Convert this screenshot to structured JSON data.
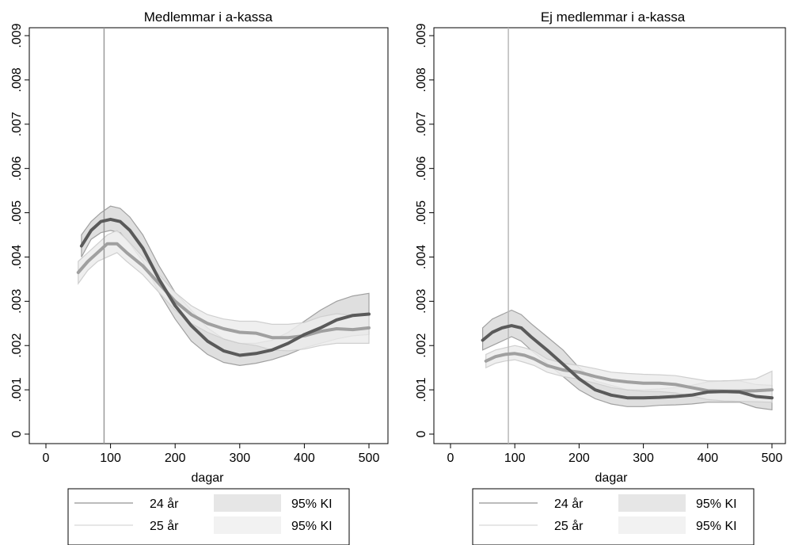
{
  "chart_data": [
    {
      "type": "line",
      "title": "Medlemmar i a-kassa",
      "xlabel": "dagar",
      "ylabel": "",
      "xlim": [
        0,
        500
      ],
      "ylim": [
        0,
        0.009
      ],
      "xticks": [
        "0",
        "100",
        "200",
        "300",
        "400",
        "500"
      ],
      "yticks": [
        "0",
        ".001",
        ".002",
        ".003",
        ".004",
        ".005",
        ".006",
        ".007",
        ".008",
        ".009"
      ],
      "reference_line_x": 90,
      "series": [
        {
          "name": "24 år",
          "color": "#5a5a5a",
          "x": [
            55,
            70,
            85,
            100,
            115,
            130,
            150,
            175,
            200,
            225,
            250,
            275,
            300,
            325,
            350,
            375,
            400,
            425,
            450,
            475,
            500
          ],
          "y": [
            0.00425,
            0.0046,
            0.0048,
            0.00485,
            0.0048,
            0.0046,
            0.0042,
            0.0035,
            0.0029,
            0.00245,
            0.0021,
            0.00188,
            0.00178,
            0.00182,
            0.0019,
            0.00205,
            0.00225,
            0.0024,
            0.00258,
            0.00268,
            0.00271
          ],
          "ci_lower": [
            0.004,
            0.0044,
            0.00455,
            0.0046,
            0.00455,
            0.0043,
            0.0039,
            0.0032,
            0.0026,
            0.0021,
            0.0018,
            0.00162,
            0.00155,
            0.0016,
            0.00168,
            0.0018,
            0.00195,
            0.00205,
            0.00215,
            0.00222,
            0.00225
          ],
          "ci_upper": [
            0.0045,
            0.0048,
            0.005,
            0.00515,
            0.0051,
            0.0049,
            0.0045,
            0.0038,
            0.0032,
            0.0028,
            0.0024,
            0.00215,
            0.00205,
            0.00205,
            0.00212,
            0.0023,
            0.00255,
            0.0028,
            0.003,
            0.00312,
            0.00318
          ]
        },
        {
          "name": "25 år",
          "color": "#a0a0a0",
          "x": [
            50,
            65,
            80,
            95,
            110,
            125,
            150,
            175,
            200,
            225,
            250,
            275,
            300,
            325,
            350,
            375,
            400,
            425,
            450,
            475,
            500
          ],
          "y": [
            0.00365,
            0.0039,
            0.0041,
            0.0043,
            0.0043,
            0.0041,
            0.0038,
            0.0034,
            0.003,
            0.0027,
            0.0025,
            0.00238,
            0.0023,
            0.00228,
            0.00218,
            0.00218,
            0.00222,
            0.00232,
            0.00238,
            0.00236,
            0.0024
          ],
          "ci_lower": [
            0.0034,
            0.0037,
            0.0039,
            0.004,
            0.0041,
            0.0039,
            0.0036,
            0.0032,
            0.0028,
            0.0025,
            0.0023,
            0.00215,
            0.00205,
            0.002,
            0.0019,
            0.00188,
            0.00192,
            0.002,
            0.00205,
            0.00205,
            0.00205
          ],
          "ci_upper": [
            0.0039,
            0.0041,
            0.0043,
            0.0045,
            0.0046,
            0.0044,
            0.004,
            0.0036,
            0.0032,
            0.0029,
            0.0027,
            0.0026,
            0.00255,
            0.00255,
            0.00248,
            0.00248,
            0.00252,
            0.00265,
            0.00272,
            0.00268,
            0.00272
          ]
        }
      ]
    },
    {
      "type": "line",
      "title": "Ej medlemmar i a-kassa",
      "xlabel": "dagar",
      "ylabel": "",
      "xlim": [
        0,
        500
      ],
      "ylim": [
        0,
        0.009
      ],
      "xticks": [
        "0",
        "100",
        "200",
        "300",
        "400",
        "500"
      ],
      "yticks": [
        "0",
        ".001",
        ".002",
        ".003",
        ".004",
        ".005",
        ".006",
        ".007",
        ".008",
        ".009"
      ],
      "reference_line_x": 90,
      "series": [
        {
          "name": "24 år",
          "color": "#5a5a5a",
          "x": [
            50,
            65,
            80,
            95,
            110,
            125,
            150,
            175,
            200,
            225,
            250,
            275,
            300,
            325,
            350,
            375,
            400,
            425,
            450,
            475,
            500
          ],
          "y": [
            0.00212,
            0.0023,
            0.0024,
            0.00245,
            0.0024,
            0.0022,
            0.0019,
            0.00158,
            0.00125,
            0.001,
            0.00088,
            0.00082,
            0.00082,
            0.00083,
            0.00085,
            0.00088,
            0.00095,
            0.00096,
            0.00095,
            0.00085,
            0.00082
          ],
          "ci_lower": [
            0.0019,
            0.002,
            0.0021,
            0.0022,
            0.0021,
            0.0019,
            0.0016,
            0.0013,
            0.001,
            0.0008,
            0.00068,
            0.00062,
            0.00062,
            0.00065,
            0.00066,
            0.00068,
            0.00072,
            0.00072,
            0.00072,
            0.0006,
            0.00055
          ],
          "ci_upper": [
            0.0024,
            0.0026,
            0.0027,
            0.0028,
            0.0027,
            0.0025,
            0.0022,
            0.0019,
            0.0015,
            0.0012,
            0.0011,
            0.001,
            0.001,
            0.00102,
            0.00105,
            0.0011,
            0.00118,
            0.0012,
            0.0012,
            0.00112,
            0.0011
          ]
        },
        {
          "name": "25 år",
          "color": "#a0a0a0",
          "x": [
            55,
            70,
            85,
            100,
            115,
            130,
            150,
            175,
            200,
            225,
            250,
            275,
            300,
            325,
            350,
            375,
            400,
            425,
            450,
            475,
            500
          ],
          "y": [
            0.00165,
            0.00175,
            0.0018,
            0.00182,
            0.00178,
            0.0017,
            0.00155,
            0.00145,
            0.0014,
            0.0013,
            0.00122,
            0.00118,
            0.00115,
            0.00115,
            0.00112,
            0.00105,
            0.00098,
            0.00097,
            0.00097,
            0.00098,
            0.001
          ],
          "ci_lower": [
            0.0015,
            0.0016,
            0.00165,
            0.00168,
            0.00162,
            0.00155,
            0.0014,
            0.0013,
            0.00124,
            0.00115,
            0.00105,
            0.001,
            0.00097,
            0.00096,
            0.00093,
            0.00086,
            0.00078,
            0.00075,
            0.00074,
            0.00073,
            0.00072
          ],
          "ci_upper": [
            0.0018,
            0.0019,
            0.00195,
            0.002,
            0.00195,
            0.00188,
            0.0017,
            0.0016,
            0.00155,
            0.00148,
            0.0014,
            0.00137,
            0.00135,
            0.00134,
            0.00132,
            0.00126,
            0.0012,
            0.0012,
            0.00122,
            0.00125,
            0.00142
          ]
        }
      ]
    }
  ],
  "legend": {
    "items": [
      {
        "label": "24 år",
        "kind": "line",
        "color": "#a6a6a6"
      },
      {
        "label": "95% KI",
        "kind": "area",
        "color": "#e6e6e6"
      },
      {
        "label": "25 år",
        "kind": "line",
        "color": "#dddddd"
      },
      {
        "label": "95% KI",
        "kind": "area",
        "color": "#f2f2f2"
      }
    ]
  },
  "colors": {
    "ci_24": "#d9d9d9",
    "ci_24_edge": "#a0a0a0",
    "ci_25": "#ececec",
    "ci_25_edge": "#cfcfcf",
    "ref_line_left": "#9a9a9a",
    "ref_line_right": "#b8b8b8",
    "axis": "#000000"
  }
}
